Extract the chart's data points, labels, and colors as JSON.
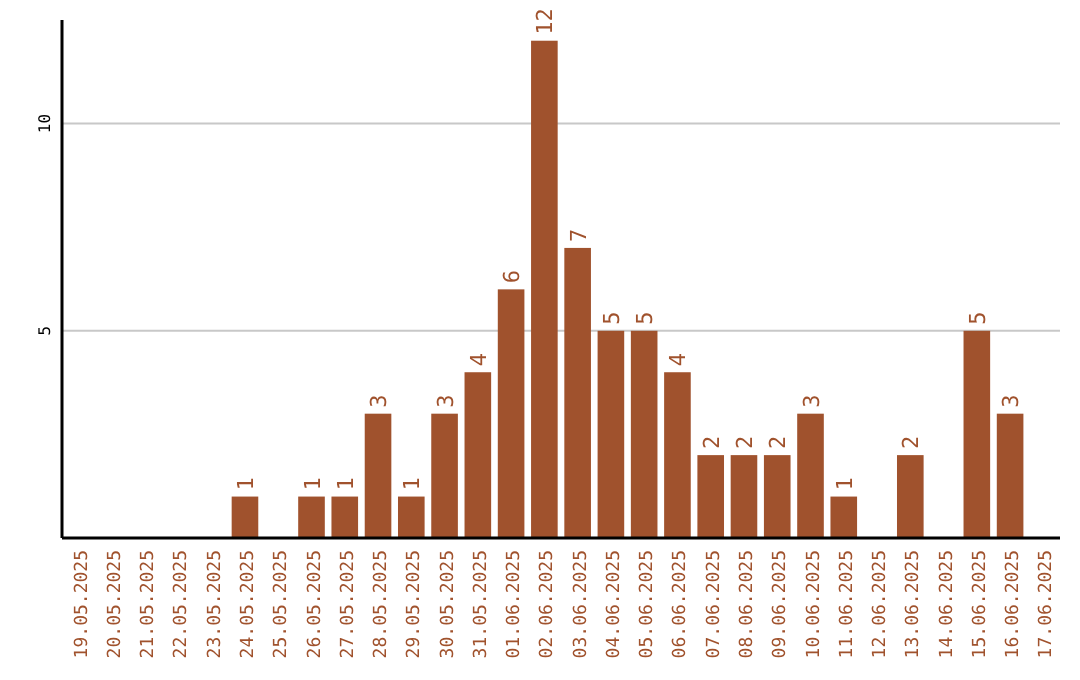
{
  "chart_data": {
    "type": "bar",
    "categories": [
      "19.05.2025",
      "20.05.2025",
      "21.05.2025",
      "22.05.2025",
      "23.05.2025",
      "24.05.2025",
      "25.05.2025",
      "26.05.2025",
      "27.05.2025",
      "28.05.2025",
      "29.05.2025",
      "30.05.2025",
      "31.05.2025",
      "01.06.2025",
      "02.06.2025",
      "03.06.2025",
      "04.06.2025",
      "05.06.2025",
      "06.06.2025",
      "07.06.2025",
      "08.06.2025",
      "09.06.2025",
      "10.06.2025",
      "11.06.2025",
      "12.06.2025",
      "13.06.2025",
      "14.06.2025",
      "15.06.2025",
      "16.06.2025",
      "17.06.2025"
    ],
    "values": [
      null,
      null,
      null,
      null,
      null,
      1,
      null,
      1,
      1,
      3,
      1,
      3,
      4,
      6,
      12,
      7,
      5,
      5,
      4,
      2,
      2,
      2,
      3,
      1,
      null,
      2,
      null,
      5,
      3,
      null
    ],
    "color": "#a0522d",
    "ylim": [
      0,
      12.5
    ],
    "yticks": [
      5,
      10
    ],
    "grid": "y",
    "data_labels": true
  }
}
